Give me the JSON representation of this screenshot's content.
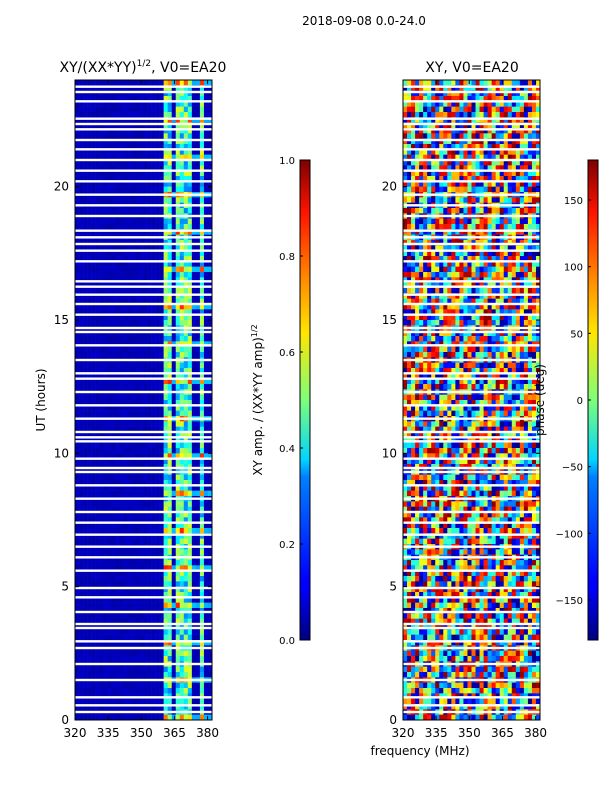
{
  "suptitle": "2018-09-08 0.0-24.0",
  "xlabel_shared": "frequency (MHz)",
  "chart_data": [
    {
      "type": "heatmap",
      "title": "XY/(XX*YY)",
      "title_exp": "1/2",
      "title_suffix": ", V0=EA20",
      "xlabel": "",
      "ylabel": "UT (hours)",
      "x_ticks": [
        320,
        335,
        350,
        365,
        380
      ],
      "y_ticks": [
        0,
        5,
        10,
        15,
        20
      ],
      "xlim": [
        320,
        382
      ],
      "ylim": [
        0,
        24
      ],
      "colorbar": {
        "label": "XY amp. / (XX*YY amp)",
        "label_exp": "1/2",
        "ticks": [
          "0.0",
          "0.2",
          "0.4",
          "0.6",
          "0.8",
          "1.0"
        ],
        "range": [
          0,
          1
        ],
        "colormap": "jet"
      },
      "description_values": {
        "background_level": 0.05,
        "bright_channel_bands_mhz": [
          [
            360,
            363
          ],
          [
            366,
            369
          ],
          [
            370,
            373
          ],
          [
            376,
            379
          ]
        ],
        "band_peak_level": 0.7
      }
    },
    {
      "type": "heatmap",
      "title": "XY, V0=EA20",
      "xlabel": "frequency (MHz)",
      "ylabel": "",
      "x_ticks": [
        320,
        335,
        350,
        365,
        380
      ],
      "y_ticks": [
        0,
        5,
        10,
        15,
        20
      ],
      "xlim": [
        320,
        382
      ],
      "ylim": [
        0,
        24
      ],
      "colorbar": {
        "label": "phase (deg)",
        "ticks": [
          "150",
          "100",
          "50",
          "0",
          "−50",
          "−100",
          "−150"
        ],
        "tick_values": [
          150,
          100,
          50,
          0,
          -50,
          -100,
          -150
        ],
        "range": [
          -180,
          180
        ],
        "colormap": "jet"
      }
    }
  ],
  "flag_gaps_hours": [
    0.3,
    0.55,
    0.85,
    1.5,
    2.1,
    2.7,
    2.95,
    3.45,
    3.6,
    4.05,
    4.6,
    4.95,
    5.6,
    6.1,
    6.5,
    6.95,
    7.4,
    7.8,
    8.3,
    8.8,
    9.3,
    9.45,
    9.8,
    10.45,
    10.6,
    10.8,
    11.3,
    11.8,
    12.3,
    12.8,
    13.0,
    13.5,
    14.05,
    14.55,
    14.7,
    15.2,
    15.6,
    15.95,
    16.25,
    16.45,
    17.2,
    17.6,
    17.85,
    18.1,
    18.35,
    18.9,
    19.3,
    19.7,
    20.2,
    20.6,
    21.0,
    21.4,
    21.75,
    22.15,
    22.35,
    22.55,
    23.2,
    23.55,
    23.75
  ]
}
